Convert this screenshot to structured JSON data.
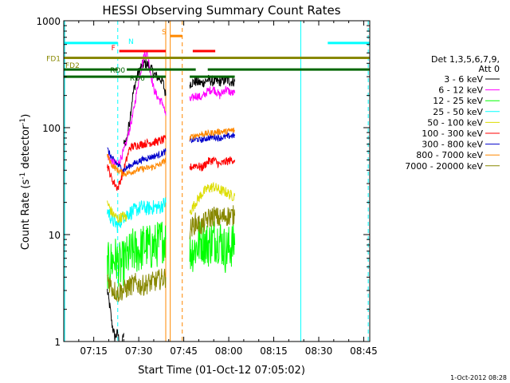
{
  "chart_data": {
    "type": "line",
    "title": "HESSI Observing Summary Count Rates",
    "xlabel": "Start Time (01-Oct-12 07:05:02)",
    "ylabel": "Count Rate (s⁻¹ detector⁻¹)",
    "y_scale": "log",
    "ylim": [
      1,
      1000
    ],
    "xlim_minutes": [
      425,
      527
    ],
    "x_ticks": [
      {
        "t": 435,
        "label": "07:15"
      },
      {
        "t": 450,
        "label": "07:30"
      },
      {
        "t": 465,
        "label": "07:45"
      },
      {
        "t": 480,
        "label": "08:00"
      },
      {
        "t": 495,
        "label": "08:15"
      },
      {
        "t": 510,
        "label": "08:30"
      },
      {
        "t": 525,
        "label": "08:45"
      }
    ],
    "y_ticks": [
      {
        "v": 1,
        "label": "1"
      },
      {
        "v": 10,
        "label": "10"
      },
      {
        "v": 100,
        "label": "100"
      },
      {
        "v": 1000,
        "label": "1000"
      }
    ],
    "legend_header": [
      "Det 1,3,5,6,7,9,",
      "Att 0"
    ],
    "legend_position": "right",
    "series": [
      {
        "name": "3 - 6 keV",
        "color": "#000000",
        "noise": 0.05,
        "segments": [
          [
            [
              439.5,
              3
            ],
            [
              440.5,
              2
            ],
            [
              441,
              1.5
            ],
            [
              442,
              1.1
            ],
            [
              443,
              1.2
            ],
            [
              444,
              0.8
            ],
            [
              445,
              1.2
            ]
          ],
          [
            [
              445,
              70
            ],
            [
              446,
              78
            ],
            [
              447,
              120
            ],
            [
              448,
              200
            ],
            [
              449,
              270
            ],
            [
              450,
              330
            ],
            [
              451,
              380
            ],
            [
              452,
              400
            ],
            [
              453,
              390
            ],
            [
              454,
              360
            ],
            [
              455,
              320
            ],
            [
              456,
              300
            ],
            [
              457,
              290
            ],
            [
              458,
              270
            ],
            [
              459,
              200
            ]
          ],
          [
            [
              467,
              260
            ],
            [
              469,
              270
            ],
            [
              471,
              260
            ],
            [
              473,
              280
            ],
            [
              475,
              270
            ],
            [
              477,
              270
            ],
            [
              479,
              280
            ],
            [
              481,
              270
            ],
            [
              482,
              270
            ]
          ]
        ]
      },
      {
        "name": "6 - 12 keV",
        "color": "#ff00ff",
        "noise": 0.04,
        "segments": [
          [
            [
              439.5,
              55
            ],
            [
              441,
              48
            ],
            [
              443,
              45
            ],
            [
              445,
              60
            ],
            [
              446,
              75
            ],
            [
              448,
              130
            ],
            [
              450,
              280
            ],
            [
              452,
              500
            ],
            [
              453,
              480
            ],
            [
              454,
              320
            ],
            [
              455,
              230
            ],
            [
              456,
              200
            ],
            [
              457,
              180
            ],
            [
              458,
              170
            ],
            [
              459,
              130
            ]
          ],
          [
            [
              467,
              180
            ],
            [
              469,
              200
            ],
            [
              471,
              190
            ],
            [
              473,
              220
            ],
            [
              475,
              230
            ],
            [
              477,
              200
            ],
            [
              479,
              230
            ],
            [
              481,
              210
            ],
            [
              482,
              210
            ]
          ]
        ]
      },
      {
        "name": "12 - 25 keV",
        "color": "#00ff00",
        "noise": 0.22,
        "segments": [
          [
            [
              439.5,
              5
            ],
            [
              442,
              6
            ],
            [
              444,
              5
            ],
            [
              446,
              6
            ],
            [
              448,
              7
            ],
            [
              450,
              7
            ],
            [
              452,
              8
            ],
            [
              454,
              7.5
            ],
            [
              456,
              8
            ],
            [
              458,
              9
            ],
            [
              459,
              9
            ]
          ],
          [
            [
              467,
              7
            ],
            [
              469,
              7.5
            ],
            [
              471,
              9
            ],
            [
              473,
              8
            ],
            [
              475,
              9
            ],
            [
              477,
              9
            ],
            [
              479,
              7
            ],
            [
              481,
              8
            ],
            [
              482,
              8
            ]
          ]
        ]
      },
      {
        "name": "25 - 50 keV",
        "color": "#00ffff",
        "noise": 0.07,
        "segments": [
          [
            [
              439.5,
              17
            ],
            [
              441,
              14
            ],
            [
              443,
              12
            ],
            [
              445,
              15
            ],
            [
              447,
              16
            ],
            [
              449,
              17
            ],
            [
              451,
              18
            ],
            [
              453,
              17.5
            ],
            [
              455,
              18
            ],
            [
              457,
              18
            ],
            [
              459,
              20
            ]
          ]
        ]
      },
      {
        "name": "50 - 100 keV",
        "color": "#dddd00",
        "noise": 0.05,
        "segments": [
          [
            [
              439.5,
              20
            ],
            [
              441,
              16
            ],
            [
              443,
              14
            ],
            [
              445,
              15
            ],
            [
              446,
              14
            ]
          ],
          [
            [
              467,
              16
            ],
            [
              469,
              20
            ],
            [
              471,
              24
            ],
            [
              473,
              27
            ],
            [
              475,
              28
            ],
            [
              477,
              26
            ],
            [
              479,
              25
            ],
            [
              481,
              23
            ],
            [
              482,
              23
            ]
          ]
        ]
      },
      {
        "name": "100 - 300 keV",
        "color": "#ff0000",
        "noise": 0.04,
        "segments": [
          [
            [
              439.5,
              45
            ],
            [
              441,
              33
            ],
            [
              443,
              27
            ],
            [
              445,
              40
            ],
            [
              447,
              65
            ],
            [
              449,
              68
            ],
            [
              451,
              70
            ],
            [
              453,
              72
            ],
            [
              455,
              73
            ],
            [
              457,
              75
            ],
            [
              459,
              78
            ]
          ],
          [
            [
              467,
              42
            ],
            [
              469,
              45
            ],
            [
              471,
              42
            ],
            [
              473,
              48
            ],
            [
              475,
              50
            ],
            [
              477,
              45
            ],
            [
              479,
              48
            ],
            [
              481,
              50
            ],
            [
              482,
              50
            ]
          ]
        ]
      },
      {
        "name": "300 - 800 keV",
        "color": "#0000cc",
        "noise": 0.03,
        "segments": [
          [
            [
              439.5,
              63
            ],
            [
              441,
              52
            ],
            [
              443,
              45
            ],
            [
              445,
              40
            ],
            [
              447,
              44
            ],
            [
              449,
              47
            ],
            [
              451,
              50
            ],
            [
              453,
              52
            ],
            [
              455,
              54
            ],
            [
              457,
              56
            ],
            [
              459,
              60
            ]
          ],
          [
            [
              467,
              75
            ],
            [
              469,
              78
            ],
            [
              471,
              77
            ],
            [
              473,
              80
            ],
            [
              475,
              82
            ],
            [
              477,
              80
            ],
            [
              479,
              82
            ],
            [
              481,
              84
            ],
            [
              482,
              84
            ]
          ]
        ]
      },
      {
        "name": "800 - 7000 keV",
        "color": "#ff8800",
        "noise": 0.03,
        "segments": [
          [
            [
              439.5,
              55
            ],
            [
              441,
              45
            ],
            [
              443,
              40
            ],
            [
              445,
              37
            ],
            [
              447,
              38
            ],
            [
              449,
              40
            ],
            [
              451,
              41
            ],
            [
              453,
              42
            ],
            [
              455,
              43
            ],
            [
              457,
              45
            ],
            [
              459,
              50
            ]
          ],
          [
            [
              467,
              80
            ],
            [
              469,
              85
            ],
            [
              471,
              87
            ],
            [
              473,
              88
            ],
            [
              475,
              90
            ],
            [
              477,
              92
            ],
            [
              479,
              92
            ],
            [
              481,
              94
            ],
            [
              482,
              94
            ]
          ]
        ]
      },
      {
        "name": "7000 - 20000 keV",
        "color": "#888800",
        "noise": 0.1,
        "segments": [
          [
            [
              439.5,
              4
            ],
            [
              441,
              3.2
            ],
            [
              443,
              2.8
            ],
            [
              444,
              3
            ],
            [
              445,
              3
            ],
            [
              447,
              3.3
            ],
            [
              449,
              3.5
            ],
            [
              451,
              3.3
            ],
            [
              453,
              3.5
            ],
            [
              455,
              3.6
            ],
            [
              457,
              3.8
            ],
            [
              459,
              4
            ]
          ],
          [
            [
              467,
              11
            ],
            [
              469,
              13
            ],
            [
              471,
              12
            ],
            [
              473,
              14
            ],
            [
              475,
              15
            ],
            [
              477,
              14
            ],
            [
              479,
              15
            ],
            [
              481,
              15
            ],
            [
              482,
              15
            ]
          ]
        ]
      }
    ],
    "flag_bars": [
      {
        "label": "N",
        "color": "#00ffff",
        "y_value": 620,
        "ranges": [
          [
            425,
            443
          ],
          [
            513,
            527
          ]
        ]
      },
      {
        "label": "S",
        "color": "#ff8800",
        "y_value": 720,
        "ranges": [
          [
            460.5,
            464.5
          ]
        ]
      },
      {
        "label": "F",
        "color": "#ff0000",
        "y_value": 520,
        "ranges": [
          [
            443.5,
            459
          ],
          [
            468,
            475.5
          ]
        ]
      },
      {
        "label": "FD1",
        "color": "#888800",
        "y_value": 450,
        "ranges": [
          [
            425,
            527
          ]
        ]
      },
      {
        "label": "FD2",
        "color": "#888800",
        "y_value": 390,
        "ranges": []
      },
      {
        "label": "RD0",
        "color": "#006600",
        "y_value": 350,
        "ranges": [
          [
            425,
            443
          ],
          [
            446,
            469
          ],
          [
            473,
            527
          ]
        ]
      },
      {
        "label": "RD6",
        "color": "#006600",
        "y_value": 300,
        "ranges": [
          [
            425,
            459
          ],
          [
            467,
            482
          ]
        ]
      }
    ],
    "vertical_lines": [
      {
        "t": 425.3,
        "color": "#00ffff",
        "dash": false
      },
      {
        "t": 443,
        "color": "#00ffff",
        "dash": true
      },
      {
        "t": 459,
        "color": "#ff8800",
        "dash": false
      },
      {
        "t": 460.5,
        "color": "#ff8800",
        "dash": false
      },
      {
        "t": 464.5,
        "color": "#ff8800",
        "dash": true
      },
      {
        "t": 504,
        "color": "#00ffff",
        "dash": false
      },
      {
        "t": 526.5,
        "color": "#00ffff",
        "dash": true
      }
    ]
  },
  "footer": {
    "timestamp": "1-Oct-2012 08:28"
  }
}
